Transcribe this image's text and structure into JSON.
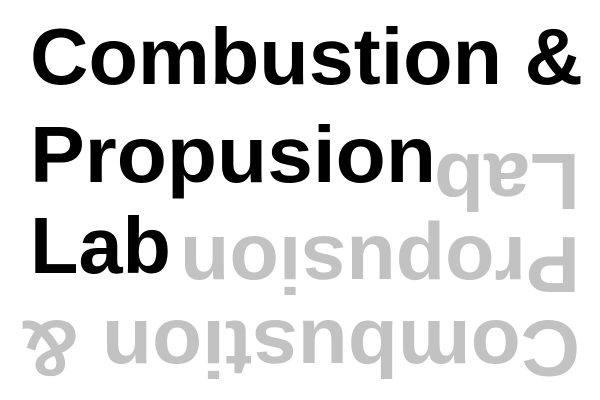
{
  "logo": {
    "line1": "Combustion &",
    "line2": "Propusion",
    "line3": "Lab",
    "mirror_line1": "Combustion &",
    "mirror_line2": "Propusion",
    "mirror_line3": "Lab"
  },
  "colors": {
    "primary_text": "#000000",
    "mirror_text": "#c2c2c2",
    "background": "#ffffff"
  }
}
